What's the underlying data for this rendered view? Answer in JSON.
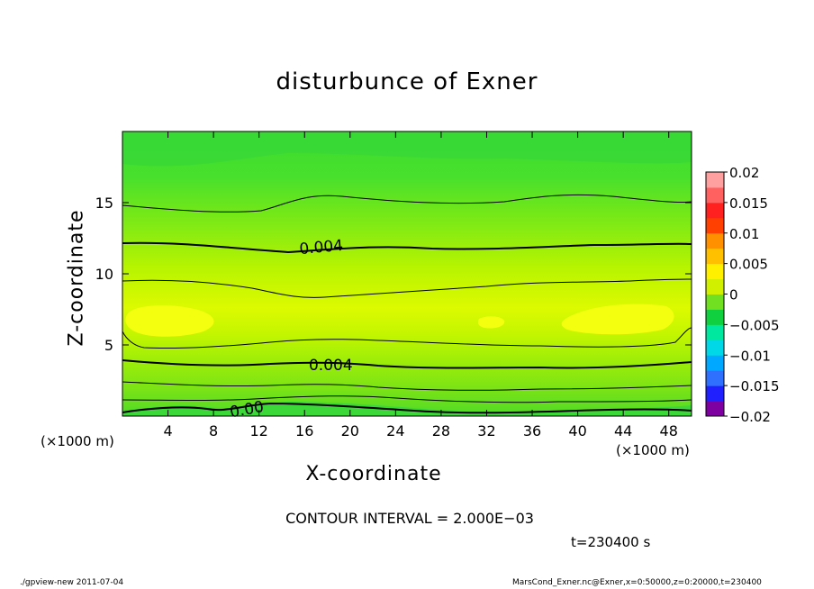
{
  "chart_data": {
    "type": "heatmap",
    "title": "disturbunce of Exner",
    "xlabel": "X-coordinate",
    "ylabel": "Z-coordinate",
    "x_unit_left": "(×1000 m)",
    "x_unit_right": "(×1000 m)",
    "xlim": [
      0,
      50
    ],
    "ylim": [
      0,
      20
    ],
    "xticks": [
      4,
      8,
      12,
      16,
      20,
      24,
      28,
      32,
      36,
      40,
      44,
      48
    ],
    "xtick_labels": [
      "4",
      "8",
      "12",
      "16",
      "20",
      "24",
      "28",
      "32",
      "36",
      "40",
      "44",
      "48"
    ],
    "yticks": [
      5,
      10,
      15
    ],
    "ytick_labels": [
      "5",
      "10",
      "15"
    ],
    "colorbar": {
      "min": -0.02,
      "max": 0.02,
      "tick_values": [
        0.02,
        0.015,
        0.01,
        0.005,
        0,
        -0.005,
        -0.01,
        -0.015,
        -0.02
      ],
      "tick_labels": [
        "0.02",
        "0.015",
        "0.01",
        "0.005",
        "0",
        "−0.005",
        "−0.01",
        "−0.015",
        "−0.02"
      ],
      "bands": [
        "#7f00a0",
        "#2020ff",
        "#3070ff",
        "#00a8ff",
        "#00d8e8",
        "#00e8a0",
        "#10d040",
        "#70e020",
        "#d0f000",
        "#fff000",
        "#ffc000",
        "#ff9000",
        "#ff4000",
        "#ff2020",
        "#ff6060",
        "#ffa0a0"
      ]
    },
    "contour_labels": [
      {
        "text": "0.004",
        "x": 17.5,
        "z": 11.9
      },
      {
        "text": "0.004",
        "x": 18.3,
        "z": 3.6
      },
      {
        "text": "0.00",
        "x": 11.0,
        "z": 0.5
      }
    ],
    "contour_interval_text": "CONTOUR INTERVAL = 2.000E−03",
    "time_text": "t=230400 s"
  },
  "footer": {
    "left": "./gpview-new   2011-07-04",
    "right": "MarsCond_Exner.nc@Exner,x=0:50000,z=0:20000,t=230400"
  },
  "colors": {
    "background": "#ffffff",
    "field_low": "#3cdc30",
    "field_mid": "#a8f000",
    "field_high": "#f4ff00"
  }
}
